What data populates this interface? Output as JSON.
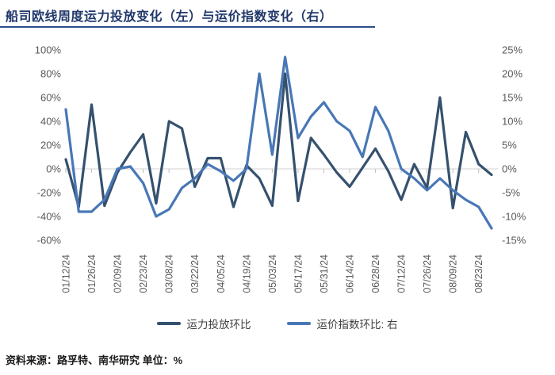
{
  "title": "船司欧线周度运力投放变化（左）与运价指数变化（右）",
  "source_note": "资料来源：路孚特、南华研究 单位：%",
  "colors": {
    "capacity_line": "#35516e",
    "freight_line": "#4877b6",
    "title_text": "#21386b",
    "title_underline": "#2d4b8d",
    "axis_text": "#595959",
    "gridline": "#d9d9d9",
    "tick_mark": "#bfbfbf"
  },
  "chart_data": {
    "type": "line",
    "title": "船司欧线周度运力投放变化（左）与运价指数变化（右）",
    "x_tick_labels": [
      "01/12/24",
      "01/26/24",
      "02/09/24",
      "02/23/24",
      "03/08/24",
      "03/22/24",
      "04/05/24",
      "04/19/24",
      "05/03/24",
      "05/17/24",
      "05/31/24",
      "06/14/24",
      "06/28/24",
      "07/12/24",
      "07/26/24",
      "08/09/24",
      "08/23/24"
    ],
    "points_per_tick": 2,
    "n_points": 34,
    "series": [
      {
        "name": "运力投放环比",
        "axis": "left",
        "values": [
          8,
          -32,
          54,
          -31,
          -3,
          14,
          29,
          -29,
          40,
          34,
          -15,
          9,
          9,
          -32,
          3,
          -8,
          -31,
          80,
          -27,
          26,
          12,
          -3,
          -15,
          1,
          17,
          -2,
          -26,
          4,
          -16,
          60,
          -33,
          31,
          4,
          -5
        ]
      },
      {
        "name": "运价指数环比: 右",
        "axis": "right",
        "values": [
          12.5,
          -9,
          -9,
          -6.5,
          0,
          0.5,
          -3,
          -10,
          -8.5,
          -4,
          -2,
          1,
          -0.5,
          -2.5,
          0,
          20,
          3,
          23.5,
          6.5,
          11,
          14,
          10,
          8,
          2.5,
          13,
          8,
          0,
          -2,
          -4.5,
          -2,
          -4.5,
          -6.5,
          -8,
          -12.5
        ]
      }
    ],
    "left_axis": {
      "ticks": [
        "100%",
        "80%",
        "60%",
        "40%",
        "20%",
        "0%",
        "-20%",
        "-40%",
        "-60%"
      ],
      "min": -60,
      "max": 100,
      "unit": "%"
    },
    "right_axis": {
      "ticks": [
        "25%",
        "20%",
        "15%",
        "10%",
        "5%",
        "0%",
        "-5%",
        "-10%",
        "-15%"
      ],
      "min": -15,
      "max": 25,
      "unit": "%"
    },
    "grid": "zero-line-only",
    "legend_position": "bottom"
  }
}
